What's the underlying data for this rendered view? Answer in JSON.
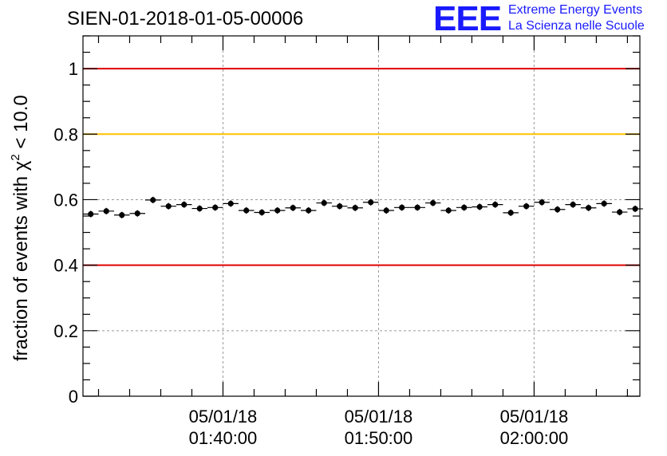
{
  "header": {
    "title": "SIEN-01-2018-01-05-00006",
    "logo_text": "EEE",
    "logo_line1": "Extreme Energy Events",
    "logo_line2": "La Scienza nelle Scuole"
  },
  "chart_data": {
    "type": "scatter",
    "title": "SIEN-01-2018-01-05-00006",
    "ylabel_prefix": "fraction of events with χ",
    "ylabel_sup": "2",
    "ylabel_suffix": " < 10.0",
    "ylim": [
      0,
      1.1
    ],
    "yticks": [
      0,
      0.2,
      0.4,
      0.6,
      0.8,
      1
    ],
    "ytick_labels": [
      "0",
      "0.2",
      "0.4",
      "0.6",
      "0.8",
      "1"
    ],
    "xlim_minutes": [
      91.0,
      126.8
    ],
    "xticks_minutes": [
      100,
      110,
      120
    ],
    "xtick_labels": [
      {
        "date": "05/01/18",
        "time": "01:40:00"
      },
      {
        "date": "05/01/18",
        "time": "01:50:00"
      },
      {
        "date": "05/01/18",
        "time": "02:00:00"
      }
    ],
    "grid": true,
    "reference_lines": [
      {
        "y": 1.0,
        "color": "#e00000"
      },
      {
        "y": 0.8,
        "color": "#ffc000"
      },
      {
        "y": 0.4,
        "color": "#e00000"
      }
    ],
    "series": [
      {
        "name": "fraction",
        "bin_width_minutes": 1.0,
        "x_minutes": [
          91.5,
          92.5,
          93.5,
          94.5,
          95.5,
          96.5,
          97.5,
          98.5,
          99.5,
          100.5,
          101.5,
          102.5,
          103.5,
          104.5,
          105.5,
          106.5,
          107.5,
          108.5,
          109.5,
          110.5,
          111.5,
          112.5,
          113.5,
          114.5,
          115.5,
          116.5,
          117.5,
          118.5,
          119.5,
          120.5,
          121.5,
          122.5,
          123.5,
          124.5,
          125.5,
          126.5
        ],
        "values": [
          0.556,
          0.565,
          0.553,
          0.558,
          0.599,
          0.58,
          0.585,
          0.573,
          0.576,
          0.588,
          0.567,
          0.561,
          0.567,
          0.575,
          0.567,
          0.59,
          0.58,
          0.575,
          0.592,
          0.567,
          0.576,
          0.576,
          0.59,
          0.567,
          0.576,
          0.578,
          0.585,
          0.56,
          0.58,
          0.592,
          0.57,
          0.585,
          0.575,
          0.588,
          0.562,
          0.572
        ],
        "errors": [
          0.01,
          0.01,
          0.01,
          0.01,
          0.01,
          0.01,
          0.01,
          0.01,
          0.01,
          0.01,
          0.01,
          0.01,
          0.01,
          0.01,
          0.01,
          0.01,
          0.01,
          0.01,
          0.01,
          0.01,
          0.01,
          0.01,
          0.01,
          0.01,
          0.01,
          0.01,
          0.01,
          0.01,
          0.01,
          0.01,
          0.01,
          0.01,
          0.01,
          0.01,
          0.01,
          0.01
        ]
      }
    ]
  },
  "colors": {
    "logo": "#1a1aff",
    "red_line": "#e00000",
    "yellow_line": "#ffc000",
    "marker": "#000000"
  }
}
